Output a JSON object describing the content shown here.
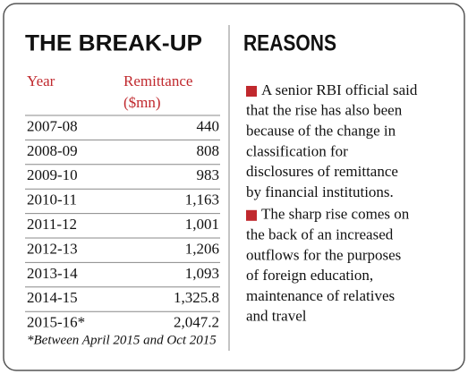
{
  "left": {
    "title": "THE BREAK-UP",
    "table": {
      "header": [
        "Year",
        "Remittance ($mn)"
      ],
      "header_lines": [
        "Remittance",
        "($mn)"
      ],
      "rows": [
        [
          "2007-08",
          "440"
        ],
        [
          "2008-09",
          "808"
        ],
        [
          "2009-10",
          "983"
        ],
        [
          "2010-11",
          "1,163"
        ],
        [
          "2011-12",
          "1,001"
        ],
        [
          "2012-13",
          "1,206"
        ],
        [
          "2013-14",
          "1,093"
        ],
        [
          "2014-15",
          "1,325.8"
        ],
        [
          "2015-16*",
          "2,047.2"
        ]
      ]
    },
    "footnote": "*Between April 2015 and Oct 2015"
  },
  "right": {
    "title": "REASONS",
    "bullets": [
      [
        "A senior RBI official said",
        "that the rise has also been",
        "because of the change in",
        "classification for",
        "disclosures of remittance",
        "by financial institutions."
      ],
      [
        "The sharp rise comes on",
        "the back of an increased",
        "outflows for the purposes",
        "of foreign education,",
        "maintenance of relatives",
        "and travel"
      ]
    ]
  }
}
